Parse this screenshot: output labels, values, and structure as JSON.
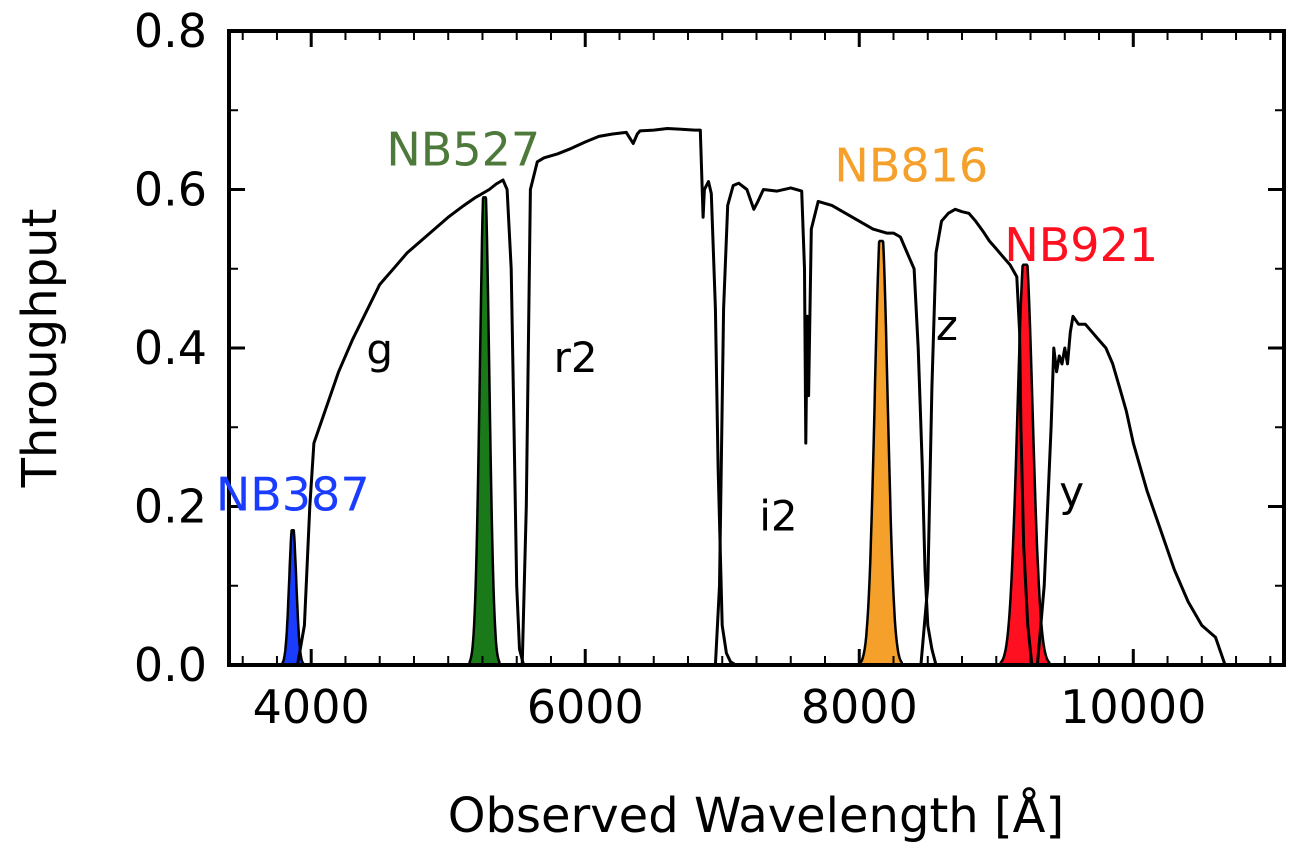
{
  "chart_data": {
    "type": "line",
    "title": "",
    "xlabel": "Observed Wavelength [Å]",
    "ylabel": "Throughput",
    "xlim": [
      3400,
      11100
    ],
    "ylim": [
      0.0,
      0.8
    ],
    "x_ticks": [
      4000,
      6000,
      8000,
      10000
    ],
    "x_tick_labels": [
      "4000",
      "6000",
      "8000",
      "10000"
    ],
    "y_ticks": [
      0.0,
      0.2,
      0.4,
      0.6,
      0.8
    ],
    "y_tick_labels": [
      "0.0",
      "0.2",
      "0.4",
      "0.6",
      "0.8"
    ],
    "grid": false,
    "broadband": [
      {
        "name": "g",
        "label": "g",
        "label_pos": [
          4500,
          0.38
        ],
        "x": [
          3900,
          3950,
          3990,
          4020,
          4100,
          4200,
          4300,
          4400,
          4500,
          4600,
          4700,
          4800,
          4900,
          5000,
          5100,
          5200,
          5300,
          5350,
          5400,
          5430,
          5460,
          5480,
          5500,
          5520,
          5550
        ],
        "y": [
          0.0,
          0.05,
          0.2,
          0.28,
          0.32,
          0.37,
          0.41,
          0.445,
          0.48,
          0.5,
          0.52,
          0.535,
          0.55,
          0.565,
          0.578,
          0.59,
          0.6,
          0.607,
          0.612,
          0.6,
          0.5,
          0.3,
          0.1,
          0.02,
          0.0
        ]
      },
      {
        "name": "r2",
        "label": "r2",
        "label_pos": [
          5930,
          0.37
        ],
        "x": [
          5540,
          5570,
          5600,
          5650,
          5700,
          5800,
          5900,
          6000,
          6100,
          6200,
          6300,
          6350,
          6380,
          6400,
          6500,
          6600,
          6700,
          6800,
          6840,
          6850,
          6860,
          6870,
          6900,
          6920,
          6950,
          6970,
          7000,
          7030,
          7060,
          7100
        ],
        "y": [
          0.0,
          0.2,
          0.6,
          0.635,
          0.64,
          0.645,
          0.652,
          0.66,
          0.667,
          0.67,
          0.672,
          0.658,
          0.67,
          0.674,
          0.675,
          0.677,
          0.676,
          0.675,
          0.675,
          0.62,
          0.565,
          0.6,
          0.61,
          0.595,
          0.45,
          0.25,
          0.05,
          0.015,
          0.004,
          0.0
        ]
      },
      {
        "name": "i2",
        "label": "i2",
        "label_pos": [
          7410,
          0.17
        ],
        "x": [
          6950,
          6980,
          7010,
          7040,
          7080,
          7120,
          7180,
          7230,
          7260,
          7300,
          7400,
          7500,
          7580,
          7600,
          7610,
          7620,
          7630,
          7650,
          7700,
          7800,
          7900,
          8000,
          8100,
          8200,
          8250,
          8300,
          8350,
          8400,
          8430,
          8460,
          8480,
          8500,
          8530,
          8560
        ],
        "y": [
          0.0,
          0.1,
          0.45,
          0.58,
          0.605,
          0.608,
          0.6,
          0.575,
          0.585,
          0.6,
          0.598,
          0.602,
          0.598,
          0.5,
          0.28,
          0.44,
          0.34,
          0.55,
          0.585,
          0.58,
          0.57,
          0.56,
          0.55,
          0.545,
          0.545,
          0.54,
          0.52,
          0.5,
          0.4,
          0.25,
          0.12,
          0.05,
          0.02,
          0.0
        ]
      },
      {
        "name": "z",
        "label": "z",
        "label_pos": [
          8640,
          0.41
        ],
        "x": [
          8450,
          8500,
          8530,
          8560,
          8600,
          8650,
          8700,
          8750,
          8800,
          8850,
          8900,
          8950,
          9000,
          9050,
          9100,
          9150,
          9170,
          9180,
          9200,
          9230,
          9260
        ],
        "y": [
          0.0,
          0.1,
          0.35,
          0.52,
          0.56,
          0.57,
          0.575,
          0.572,
          0.57,
          0.56,
          0.548,
          0.535,
          0.525,
          0.515,
          0.505,
          0.49,
          0.42,
          0.3,
          0.15,
          0.05,
          0.0
        ]
      },
      {
        "name": "y",
        "label": "y",
        "label_pos": [
          9550,
          0.2
        ],
        "x": [
          9300,
          9350,
          9400,
          9420,
          9440,
          9460,
          9480,
          9500,
          9520,
          9540,
          9560,
          9600,
          9650,
          9700,
          9750,
          9800,
          9850,
          9900,
          9950,
          10000,
          10100,
          10200,
          10300,
          10400,
          10500,
          10600,
          10670
        ],
        "y": [
          0.0,
          0.1,
          0.3,
          0.4,
          0.37,
          0.39,
          0.38,
          0.4,
          0.38,
          0.42,
          0.44,
          0.43,
          0.43,
          0.42,
          0.41,
          0.4,
          0.38,
          0.35,
          0.32,
          0.28,
          0.22,
          0.17,
          0.12,
          0.08,
          0.05,
          0.035,
          0.0
        ]
      }
    ],
    "narrowband": [
      {
        "name": "NB387",
        "label": "NB387",
        "color": "#1a3cff",
        "center": 3865,
        "fwhm": 60,
        "peak": 0.17,
        "label_pos": [
          3865,
          0.195
        ]
      },
      {
        "name": "NB527",
        "label": "NB527",
        "color": "#1a7a1a",
        "label_color": "#4d7a3a",
        "center": 5265,
        "fwhm": 80,
        "peak": 0.59,
        "label_pos": [
          5110,
          0.63
        ]
      },
      {
        "name": "NB816",
        "label": "NB816",
        "color": "#f5a02a",
        "center": 8160,
        "fwhm": 110,
        "peak": 0.535,
        "label_pos": [
          8380,
          0.61
        ]
      },
      {
        "name": "NB921",
        "label": "NB921",
        "color": "#ff1020",
        "center": 9210,
        "fwhm": 130,
        "peak": 0.505,
        "label_pos": [
          9620,
          0.51
        ]
      }
    ]
  }
}
